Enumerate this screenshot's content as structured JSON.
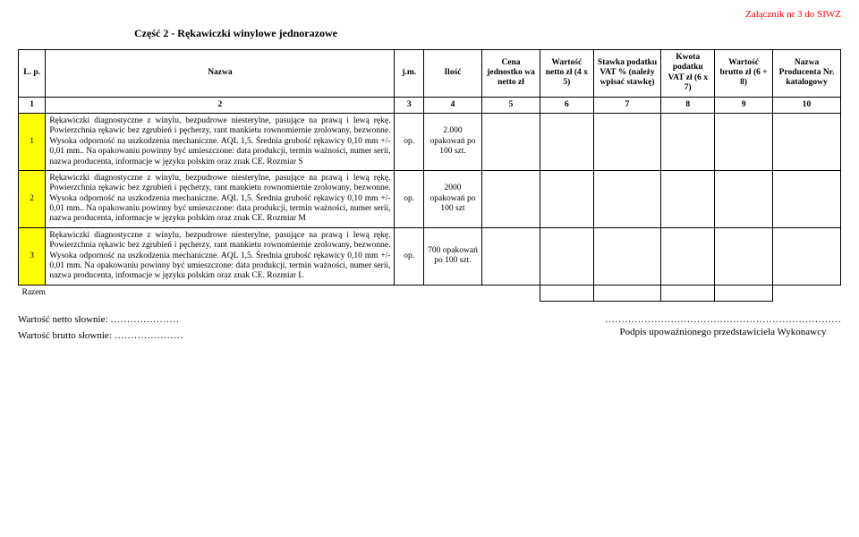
{
  "header": {
    "attachment_label": "Załącznik nr 3 do SIWZ",
    "section_title": "Część 2  -   Rękawiczki winylowe jednorazowe"
  },
  "columns": {
    "lp": "L. p.",
    "name": "Nazwa",
    "jm": "j.m.",
    "qty": "Ilość",
    "cena": "Cena jednostko wa netto zł",
    "wnet": "Wartość netto zł (4 x 5)",
    "stawka": "Stawka podatku VAT % (należy wpisać stawkę)",
    "kwota": "Kwota podatku VAT  zł (6 x 7)",
    "wbrutto": "Wartość brutto zł (6 + 8)",
    "prod": "Nazwa Producenta Nr. katalogowy"
  },
  "numrow": {
    "c1": "1",
    "c2": "2",
    "c3": "3",
    "c4": "4",
    "c5": "5",
    "c6": "6",
    "c7": "7",
    "c8": "8",
    "c9": "9",
    "c10": "10"
  },
  "rows": [
    {
      "lp": "1",
      "desc": "Rękawiczki diagnostyczne z winylu, bezpudrowe niesterylne, pasujące na prawą i lewą rękę. Powierzchnia rękawic bez zgrubień i pęcherzy, rant mankietu rownomiernie zrolowany, bezwonne. Wysoka odporność na uszkodzenia mechaniczne. AQL 1,5. Średnia grubość rękawicy 0,10 mm +/- 0,01 mm.. Na opakowaniu powinny być umieszczone: data produkcji, termin ważności, numer serii, nazwa producenta, informacje w języku polskim oraz znak CE. Rozmiar S",
      "jm": "op.",
      "qty": "2.000 opakowań po 100 szt."
    },
    {
      "lp": "2",
      "desc": "Rękawiczki diagnostyczne z winylu, bezpudrowe niesterylne, pasujące na prawą i lewą rękę. Powierzchnia rękawic bez zgrubień i pęcherzy, rant mankietu rownomiernie zrolowany, bezwonne. Wysoka odporność na uszkodzenia mechaniczne. AQL 1,5. Średnia grubość rękawicy 0,10 mm +/- 0,01 mm.. Na opakowaniu powinny być umieszczone: data produkcji, termin ważności, numer serii, nazwa producenta, informacje w języku polskim oraz znak CE. Rozmiar  M",
      "jm": "op.",
      "qty": "2000 opakowań po 100 szt"
    },
    {
      "lp": "3",
      "desc": "Rękawiczki diagnostyczne z winylu, bezpudrowe niesterylne, pasujące na prawą i lewą rękę. Powierzchnia rękawic bez zgrubień i pęcherzy, rant mankietu rownomiernie zrolowany, bezwonne. Wysoka odporność na uszkodzenia mechaniczne. AQL 1,5. Średnia grubość rękawicy 0,10 mm +/- 0,01 mm. Na opakowaniu powinny być umieszczone: data produkcji, termin ważności, numer serii, nazwa producenta, informacje w języku polskim oraz znak CE. Rozmiar   L",
      "jm": "op.",
      "qty": "700 opakowań po 100 szt."
    }
  ],
  "razem_label": "Razem",
  "footer": {
    "netto": "Wartość netto słownie: …………………",
    "brutto": "Wartość brutto słownie: …………………",
    "sig_line": "………………………………………………………………",
    "sig_label": "Podpis upoważnionego przedstawiciela Wykonawcy"
  }
}
